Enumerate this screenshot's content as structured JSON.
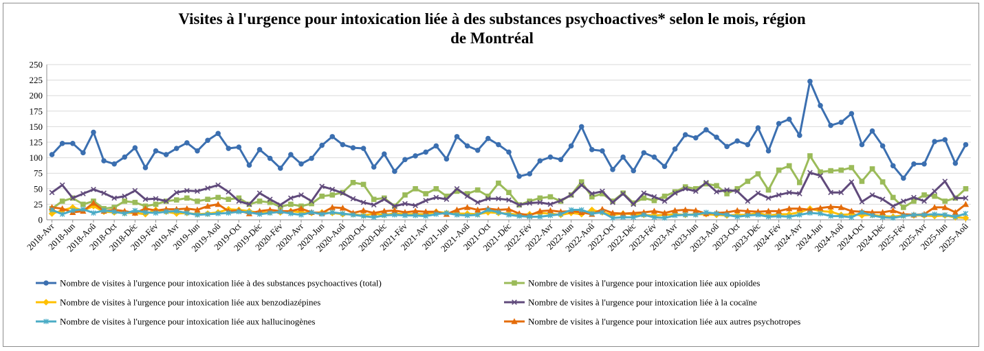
{
  "chart_data": {
    "type": "line",
    "title_line1": "Visites à l'urgence pour intoxication liée à des substances psychoactives* selon le mois, région",
    "title_line2": "de Montréal",
    "ylim": [
      0,
      250
    ],
    "yticks": [
      0,
      25,
      50,
      75,
      100,
      125,
      150,
      175,
      200,
      225,
      250
    ],
    "grid": true,
    "legend_position": "bottom",
    "categories": [
      "2018-Avr",
      "2018-Mai",
      "2018-Jun",
      "2018-Jul",
      "2018-Aoû",
      "2018-Sep",
      "2018-Oct",
      "2018-Nov",
      "2018-Déc",
      "2019-Jan",
      "2019-Fév",
      "2019-Mar",
      "2019-Avr",
      "2019-Mai",
      "2019-Jun",
      "2019-Jul",
      "2019-Aoû",
      "2019-Sep",
      "2019-Oct",
      "2019-Nov",
      "2019-Déc",
      "2020-Jan",
      "2020-Fév",
      "2020-Mar",
      "2020-Avr",
      "2020-Mai",
      "2020-Jun",
      "2020-Jul",
      "2020-Aoû",
      "2020-Sep",
      "2020-Oct",
      "2020-Nov",
      "2020-Déc",
      "2021-Jan",
      "2021-Fév",
      "2021-Mar",
      "2021-Avr",
      "2021-Mai",
      "2021-Jun",
      "2021-Jul",
      "2021-Aoû",
      "2021-Sep",
      "2021-Oct",
      "2021-Nov",
      "2021-Déc",
      "2022-Jan",
      "2022-Fév",
      "2022-Mar",
      "2022-Avr",
      "2022-Mai",
      "2022-Jun",
      "2022-Jul",
      "2022-Aoû",
      "2022-Sep",
      "2022-Oct",
      "2022-Nov",
      "2022-Déc",
      "2023-Jan",
      "2023-Fév",
      "2023-Mar",
      "2023-Avr",
      "2023-Mai",
      "2023-Jun",
      "2023-Jul",
      "2023-Aoû",
      "2023-Sep",
      "2023-Oct",
      "2023-Nov",
      "2023-Déc",
      "2024-Jan",
      "2024-Fév",
      "2024-Mar",
      "2024-Avr",
      "2024-Mai",
      "2024-Jun",
      "2024-Jul",
      "2024-Aoû",
      "2024-Sep",
      "2024-Oct",
      "2024-Nov",
      "2024-Déc",
      "2025-Jan",
      "2025-Fév",
      "2025-Mar",
      "2025-Avr",
      "2025-Mai",
      "2025-Jun",
      "2025-Jul",
      "2025-Aoû"
    ],
    "tick_labels": [
      "2018-Avr",
      "2018-Jun",
      "2018-Aoû",
      "2018-Oct",
      "2018-Déc",
      "2019-Fév",
      "2019-Avr",
      "2019-Jun",
      "2019-Aoû",
      "2019-Oct",
      "2019-Déc",
      "2020-Fév",
      "2020-Avr",
      "2020-Jun",
      "2020-Aoû",
      "2020-Oct",
      "2020-Déc",
      "2021-Fév",
      "2021-Avr",
      "2021-Jun",
      "2021-Aoû",
      "2021-Oct",
      "2021-Déc",
      "2022-Fév",
      "2022-Avr",
      "2022-Jun",
      "2022-Aoû",
      "2022-Oct",
      "2022-Déc",
      "2023-Fév",
      "2023-Avr",
      "2023-Jun",
      "2023-Aoû",
      "2023-Oct",
      "2023-Déc",
      "2024-Fév",
      "2024-Avr",
      "2024-Jun",
      "2024-Aoû",
      "2024-Oct",
      "2024-Déc",
      "2025-Fév",
      "2025-Avr",
      "2025-Jun",
      "2025-Aoû"
    ],
    "series": [
      {
        "name": "Nombre de visites à l'urgence pour intoxication liée à des substances psychoactives (total)",
        "color": "#3b6fb0",
        "marker": "circle",
        "values": [
          105,
          123,
          123,
          108,
          141,
          95,
          90,
          101,
          116,
          84,
          111,
          105,
          115,
          124,
          111,
          128,
          139,
          115,
          117,
          88,
          113,
          99,
          83,
          105,
          90,
          99,
          120,
          134,
          121,
          116,
          115,
          85,
          106,
          78,
          97,
          103,
          109,
          119,
          98,
          134,
          119,
          112,
          131,
          121,
          109,
          70,
          74,
          95,
          101,
          97,
          119,
          150,
          113,
          111,
          81,
          101,
          79,
          108,
          101,
          86,
          114,
          137,
          132,
          145,
          133,
          118,
          127,
          121,
          148,
          111,
          155,
          162,
          136,
          223,
          184,
          152,
          157,
          171,
          121,
          143,
          119,
          87,
          67,
          90,
          90,
          126,
          129,
          91,
          121
        ]
      },
      {
        "name": "Nombre de visites à l'urgence pour intoxication liée aux opioïdes",
        "color": "#9bbb59",
        "marker": "square",
        "values": [
          18,
          30,
          35,
          25,
          30,
          18,
          20,
          30,
          28,
          22,
          25,
          30,
          32,
          35,
          30,
          33,
          36,
          33,
          35,
          25,
          30,
          28,
          21,
          25,
          22,
          26,
          38,
          40,
          44,
          60,
          57,
          33,
          35,
          22,
          40,
          50,
          42,
          50,
          38,
          46,
          42,
          48,
          38,
          59,
          44,
          24,
          30,
          35,
          37,
          30,
          40,
          61,
          37,
          42,
          30,
          43,
          27,
          35,
          31,
          38,
          45,
          53,
          50,
          58,
          55,
          42,
          50,
          62,
          74,
          48,
          80,
          87,
          60,
          103,
          77,
          79,
          80,
          84,
          62,
          82,
          61,
          36,
          20,
          30,
          40,
          38,
          30,
          35,
          50
        ]
      },
      {
        "name": "Nombre de visites à l'urgence pour intoxication liée aux benzodiazépines",
        "color": "#ffc000",
        "marker": "diamond",
        "values": [
          10,
          15,
          20,
          15,
          22,
          13,
          12,
          11,
          11,
          9,
          16,
          13,
          10,
          11,
          9,
          10,
          12,
          17,
          16,
          14,
          11,
          12,
          12,
          14,
          12,
          11,
          12,
          11,
          9,
          9,
          7,
          10,
          8,
          10,
          9,
          9,
          9,
          13,
          11,
          10,
          10,
          9,
          12,
          11,
          10,
          8,
          9,
          11,
          10,
          8,
          11,
          9,
          16,
          12,
          8,
          10,
          9,
          8,
          7,
          8,
          9,
          8,
          9,
          9,
          8,
          7,
          8,
          8,
          11,
          7,
          9,
          9,
          12,
          18,
          14,
          13,
          8,
          9,
          7,
          8,
          6,
          5,
          7,
          7,
          7,
          6,
          7,
          4,
          3
        ]
      },
      {
        "name": "Nombre de visites à l'urgence pour intoxication liée à la cocaïne",
        "color": "#604a7b",
        "marker": "x",
        "values": [
          44,
          56,
          35,
          42,
          49,
          43,
          35,
          38,
          47,
          33,
          34,
          30,
          44,
          47,
          46,
          51,
          56,
          45,
          30,
          25,
          43,
          33,
          24,
          35,
          40,
          30,
          54,
          49,
          43,
          34,
          28,
          24,
          33,
          22,
          26,
          23,
          31,
          36,
          33,
          50,
          38,
          28,
          34,
          34,
          32,
          24,
          27,
          28,
          25,
          31,
          40,
          56,
          42,
          46,
          28,
          42,
          25,
          43,
          37,
          30,
          43,
          50,
          46,
          60,
          45,
          48,
          46,
          30,
          43,
          35,
          40,
          44,
          42,
          76,
          71,
          44,
          44,
          61,
          29,
          40,
          33,
          22,
          30,
          36,
          30,
          46,
          62,
          35,
          35
        ]
      },
      {
        "name": "Nombre de visites à l'urgence pour intoxication liée aux hallucinogènes",
        "color": "#4bacc6",
        "marker": "asterisk",
        "values": [
          16,
          9,
          15,
          17,
          11,
          15,
          13,
          10,
          15,
          12,
          11,
          13,
          14,
          11,
          8,
          9,
          10,
          11,
          13,
          12,
          9,
          11,
          13,
          10,
          8,
          12,
          9,
          12,
          10,
          8,
          6,
          4,
          7,
          8,
          7,
          7,
          6,
          9,
          11,
          8,
          7,
          8,
          16,
          12,
          8,
          6,
          5,
          5,
          7,
          9,
          16,
          16,
          10,
          12,
          3,
          4,
          4,
          8,
          4,
          3,
          7,
          8,
          8,
          12,
          10,
          8,
          5,
          7,
          8,
          5,
          6,
          5,
          8,
          11,
          10,
          6,
          6,
          4,
          12,
          7,
          4,
          3,
          6,
          8,
          8,
          9,
          8,
          5,
          10
        ]
      },
      {
        "name": "Nombre de visites à l'urgence pour intoxication liée aux autres psychotropes",
        "color": "#e46c0a",
        "marker": "triangle",
        "values": [
          20,
          18,
          12,
          14,
          27,
          14,
          16,
          14,
          11,
          18,
          15,
          17,
          17,
          18,
          16,
          22,
          25,
          14,
          15,
          10,
          14,
          16,
          14,
          14,
          18,
          12,
          11,
          20,
          19,
          11,
          15,
          11,
          14,
          15,
          12,
          14,
          13,
          13,
          9,
          16,
          20,
          16,
          18,
          16,
          17,
          10,
          7,
          14,
          15,
          13,
          14,
          12,
          9,
          17,
          11,
          10,
          11,
          12,
          14,
          11,
          15,
          16,
          15,
          10,
          11,
          12,
          15,
          14,
          13,
          14,
          14,
          18,
          18,
          16,
          19,
          21,
          20,
          14,
          13,
          12,
          12,
          15,
          9,
          8,
          9,
          20,
          20,
          12,
          25
        ]
      }
    ]
  }
}
